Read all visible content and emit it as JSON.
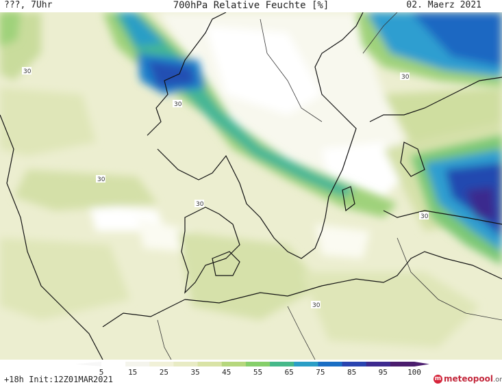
{
  "header": {
    "location": "???, 7Uhr",
    "title": "700hPa Relative Feuchte [%]",
    "date": "02. Maerz 2021"
  },
  "footer": {
    "init": "+18h Init:12Z01MAR2021",
    "logo_main": "meteopool",
    "logo_suffix": ".org"
  },
  "colorbar": {
    "labels": [
      "5",
      "15",
      "25",
      "35",
      "45",
      "55",
      "65",
      "75",
      "85",
      "95",
      "100"
    ],
    "colors": [
      "#ffffff",
      "#f4f4ec",
      "#f1f1d8",
      "#e8ebc4",
      "#d9e3a6",
      "#b6d77d",
      "#86cf6a",
      "#46b98a",
      "#2b9ec6",
      "#1a6ec4",
      "#2a44b0",
      "#3d2a8f",
      "#4b1d6e"
    ]
  },
  "contour_labels": [
    "30",
    "30",
    "30",
    "30",
    "30",
    "30",
    "30"
  ],
  "colors": {
    "land_outline": "#111111",
    "background_dry": "#f4f4e6"
  }
}
